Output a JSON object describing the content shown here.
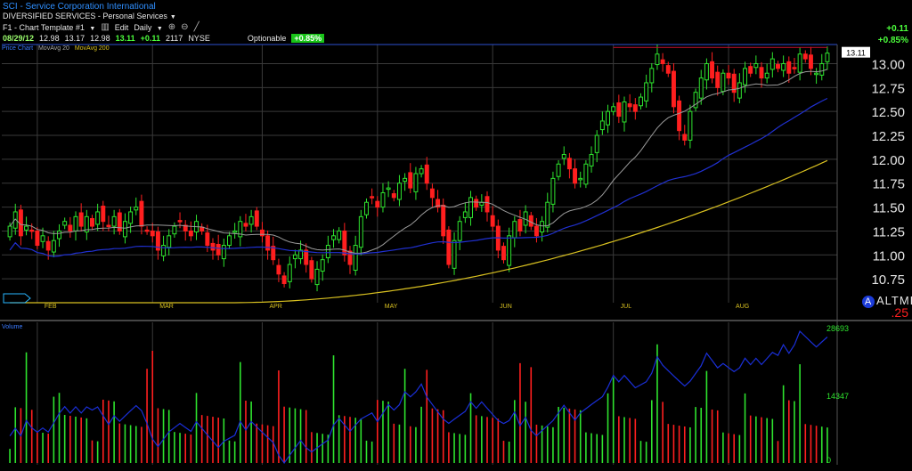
{
  "header": {
    "title": "SCI - Service Corporation International",
    "subtitle": "DIVERSIFIED SERVICES - Personal Services",
    "toolbar": {
      "template": "F1 - Chart Template #1",
      "edit": "Edit",
      "period": "Daily"
    },
    "quote": {
      "date": "08/29/12",
      "open": "12.98",
      "high": "13.17",
      "low": "12.98",
      "last": "13.11",
      "change": "+0.11",
      "volume": "2117",
      "exchange": "NYSE",
      "optionable": "Optionable",
      "pct": "+0.85%"
    },
    "corner": {
      "change": "+0.11",
      "pct": "+0.85%"
    }
  },
  "legend": {
    "price": "Price Chart",
    "ma20": "MovAvg 20",
    "ma200": "MovAvg 200",
    "volume": "Volume"
  },
  "tl": {
    "label": "ALTML",
    "value": ".25"
  },
  "colors": {
    "up": "#2ee32e",
    "down": "#ff1f1f",
    "ma20": "#9a9a9a",
    "ma50": "#2030d0",
    "ma200": "#d8c020",
    "volline": "#1a2fd8",
    "grid": "#3a3a3a",
    "resistance": "#c8102e"
  },
  "chart_data": [
    {
      "type": "candlestick",
      "ylim": [
        10.5,
        13.2
      ],
      "yticks": [
        "13.00",
        "12.75",
        "12.50",
        "12.25",
        "12.00",
        "11.75",
        "11.50",
        "11.25",
        "11.00",
        "10.75"
      ],
      "xticks": [
        "FEB",
        "MAR",
        "APR",
        "MAY",
        "JUN",
        "JUL",
        "AUG"
      ],
      "last_price_label": "13.11",
      "closes": [
        11.3,
        11.45,
        11.2,
        11.3,
        11.25,
        11.1,
        11.2,
        11.05,
        11.15,
        11.25,
        11.35,
        11.25,
        11.4,
        11.3,
        11.4,
        11.3,
        11.45,
        11.35,
        11.3,
        11.4,
        11.25,
        11.35,
        11.45,
        11.5,
        11.3,
        11.25,
        11.2,
        11.05,
        11.1,
        11.2,
        11.3,
        11.35,
        11.25,
        11.2,
        11.35,
        11.25,
        11.1,
        11.05,
        11.0,
        11.1,
        11.2,
        11.25,
        11.35,
        11.3,
        11.4,
        11.3,
        11.2,
        11.05,
        10.95,
        10.8,
        10.7,
        10.9,
        11.0,
        11.05,
        10.9,
        10.75,
        10.85,
        10.95,
        11.1,
        11.2,
        11.25,
        11.0,
        10.9,
        11.1,
        11.4,
        11.55,
        11.6,
        11.5,
        11.65,
        11.7,
        11.6,
        11.75,
        11.8,
        11.7,
        11.85,
        11.9,
        11.75,
        11.6,
        11.5,
        11.2,
        10.9,
        11.15,
        11.35,
        11.45,
        11.6,
        11.5,
        11.55,
        11.45,
        11.3,
        11.05,
        10.95,
        11.2,
        11.35,
        11.25,
        11.45,
        11.3,
        11.2,
        11.35,
        11.55,
        11.8,
        11.95,
        12.05,
        11.9,
        11.75,
        11.8,
        11.95,
        12.05,
        12.25,
        12.4,
        12.5,
        12.55,
        12.45,
        12.6,
        12.55,
        12.5,
        12.65,
        12.8,
        12.95,
        13.1,
        13.0,
        12.9,
        12.55,
        12.3,
        12.2,
        12.5,
        12.7,
        12.85,
        13.0,
        12.85,
        12.75,
        12.9,
        12.85,
        12.7,
        12.8,
        12.95,
        12.9,
        13.0,
        12.85,
        12.9,
        13.05,
        12.95,
        13.0,
        12.9,
        12.95,
        13.1,
        13.05,
        12.95,
        12.9,
        13.0,
        13.11
      ],
      "volume_ylim": [
        0,
        28693
      ],
      "volume_ticks": [
        "28693",
        "14347",
        "0"
      ]
    }
  ]
}
